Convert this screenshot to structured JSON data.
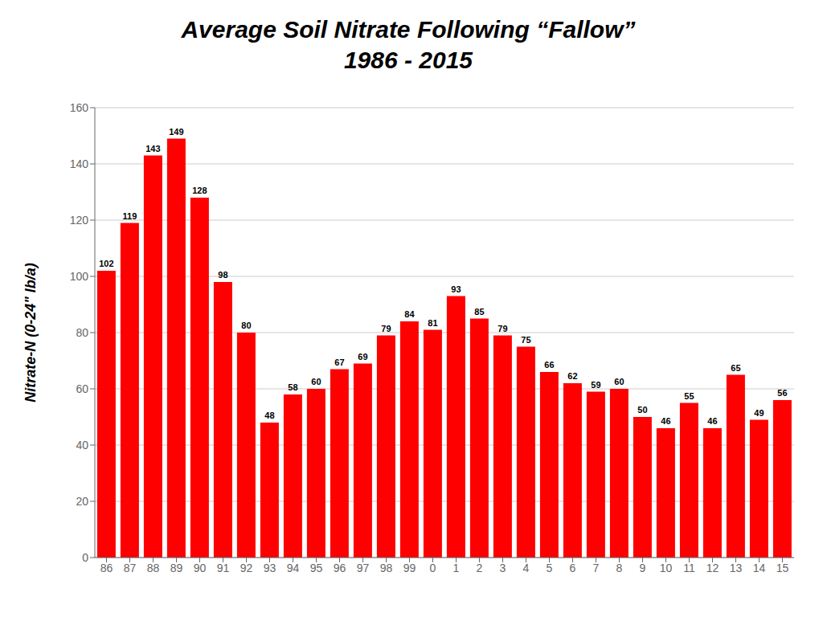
{
  "chart_data": {
    "type": "bar",
    "title": "Average Soil Nitrate Following “Fallow”",
    "subtitle": "1986 - 2015",
    "ylabel": "Nitrate-N (0-24\" lb/a)",
    "categories": [
      "86",
      "87",
      "88",
      "89",
      "90",
      "91",
      "92",
      "93",
      "94",
      "95",
      "96",
      "97",
      "98",
      "99",
      "0",
      "1",
      "2",
      "3",
      "4",
      "5",
      "6",
      "7",
      "8",
      "9",
      "10",
      "11",
      "12",
      "13",
      "14",
      "15"
    ],
    "values": [
      102,
      119,
      143,
      149,
      128,
      98,
      80,
      48,
      58,
      60,
      67,
      69,
      79,
      84,
      81,
      93,
      85,
      79,
      75,
      66,
      62,
      59,
      60,
      50,
      46,
      55,
      46,
      65,
      49,
      56
    ],
    "color": "#ff0000",
    "ylim": [
      0,
      160
    ],
    "yticks": [
      0,
      20,
      40,
      60,
      80,
      100,
      120,
      140,
      160
    ],
    "grid": true,
    "data_labels": true
  }
}
